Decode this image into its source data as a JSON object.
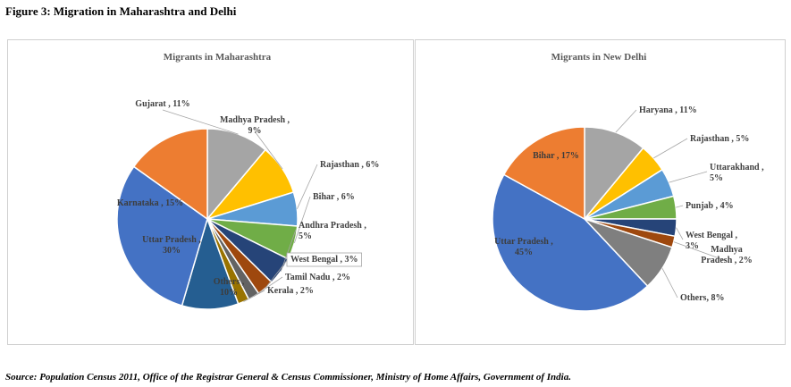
{
  "figure_title": "Figure 3: Migration in Maharashtra and Delhi",
  "source_note": "Source: Population Census 2011, Office of the Registrar General & Census Commissioner, Ministry of Home Affairs, Government of India.",
  "chart_data": [
    {
      "type": "pie",
      "title": "Migrants in Maharashtra",
      "slices": [
        {
          "label": "Gujarat",
          "value": 11,
          "text": "Gujarat , 11%",
          "color": "#a5a5a5"
        },
        {
          "label": "Madhya Pradesh",
          "value": 9,
          "text": "Madhya Pradesh ,|9%",
          "color": "#ffc000"
        },
        {
          "label": "Rajasthan",
          "value": 6,
          "text": "Rajasthan , 6%",
          "color": "#5b9bd5"
        },
        {
          "label": "Bihar",
          "value": 6,
          "text": "Bihar , 6%",
          "color": "#70ad47"
        },
        {
          "label": "Andhra Pradesh",
          "value": 5,
          "text": "Andhra Pradesh ,|5%",
          "color": "#264478"
        },
        {
          "label": "West Bengal",
          "value": 3,
          "text": "West Bengal , 3%",
          "color": "#9e480e"
        },
        {
          "label": "Tamil Nadu",
          "value": 2,
          "text": "Tamil Nadu , 2%",
          "color": "#636363"
        },
        {
          "label": "Kerala",
          "value": 2,
          "text": "Kerala , 2%",
          "color": "#997300"
        },
        {
          "label": "Others",
          "value": 10,
          "text": "Others ,|10%",
          "color": "#255e91"
        },
        {
          "label": "Uttar Pradesh",
          "value": 30,
          "text": "Uttar Pradesh ,|30%",
          "color": "#4472c4"
        },
        {
          "label": "Karnataka",
          "value": 15,
          "text": "Karnataka , 15%",
          "color": "#ed7d31"
        }
      ]
    },
    {
      "type": "pie",
      "title": "Migrants in New Delhi",
      "slices": [
        {
          "label": "Haryana",
          "value": 11,
          "text": "Haryana , 11%",
          "color": "#a5a5a5"
        },
        {
          "label": "Rajasthan",
          "value": 5,
          "text": "Rajasthan , 5%",
          "color": "#ffc000"
        },
        {
          "label": "Uttarakhand",
          "value": 5,
          "text": "Uttarakhand ,|5%",
          "color": "#5b9bd5"
        },
        {
          "label": "Punjab",
          "value": 4,
          "text": "Punjab , 4%",
          "color": "#70ad47"
        },
        {
          "label": "West Bengal",
          "value": 3,
          "text": "West Bengal ,|3%",
          "color": "#264478"
        },
        {
          "label": "Madhya Pradesh",
          "value": 2,
          "text": "Madhya|Pradesh , 2%",
          "color": "#9e480e"
        },
        {
          "label": "Others",
          "value": 8,
          "text": "Others, 8%",
          "color": "#7f7f7f"
        },
        {
          "label": "Uttar Pradesh",
          "value": 45,
          "text": "Uttar Pradesh ,|45%",
          "color": "#4472c4"
        },
        {
          "label": "Bihar",
          "value": 17,
          "text": "Bihar , 17%",
          "color": "#ed7d31"
        }
      ]
    }
  ]
}
